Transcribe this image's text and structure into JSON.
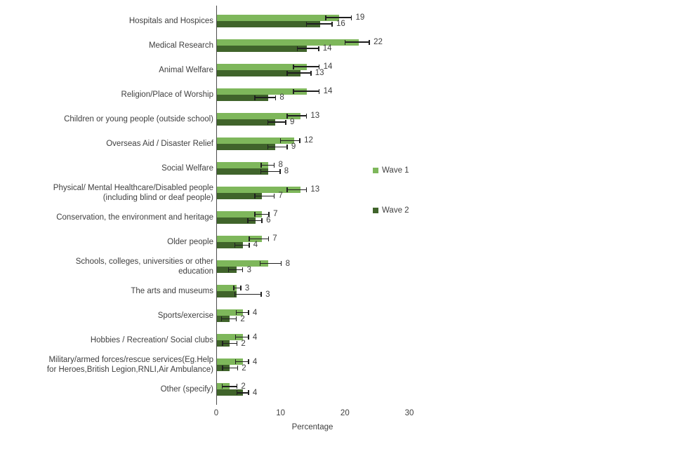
{
  "chart_data": {
    "type": "bar",
    "orientation": "horizontal",
    "grouped": true,
    "title": "",
    "xlabel": "Percentage",
    "xlim": [
      0,
      33
    ],
    "xticks": [
      0,
      10,
      20,
      30
    ],
    "grid": false,
    "legend_position": "right",
    "categories": [
      "Hospitals and Hospices",
      "Medical Research",
      "Animal Welfare",
      "Religion/Place of Worship",
      "Children or young people (outside school)",
      "Overseas Aid / Disaster Relief",
      "Social Welfare",
      "Physical/ Mental Healthcare/Disabled people\n(including blind or deaf people)",
      "Conservation, the environment and heritage",
      "Older people",
      "Schools, colleges, universities or other\neducation",
      "The arts and museums",
      "Sports/exercise",
      "Hobbies / Recreation/ Social clubs",
      "Military/armed forces/rescue services(Eg.Help\nfor Heroes,British Legion,RNLI,Air Ambulance)",
      "Other (specify)"
    ],
    "series": [
      {
        "name": "Wave 1",
        "color": "#7EB75B",
        "values": [
          19,
          22,
          14,
          14,
          13,
          12,
          8,
          13,
          7,
          7,
          8,
          3,
          4,
          4,
          4,
          2
        ],
        "error_bars": [
          [
            17,
            21
          ],
          [
            20,
            23.8
          ],
          [
            12,
            16
          ],
          [
            12,
            16
          ],
          [
            11,
            14
          ],
          [
            10,
            13
          ],
          [
            7,
            9
          ],
          [
            11,
            14
          ],
          [
            6,
            8.2
          ],
          [
            5.1,
            8.1
          ],
          [
            6.8,
            10.1
          ],
          [
            2.7,
            3.8
          ],
          [
            3.1,
            5
          ],
          [
            3,
            5
          ],
          [
            3,
            5
          ],
          [
            0.9,
            3.2
          ]
        ]
      },
      {
        "name": "Wave 2",
        "color": "#40642B",
        "values": [
          16,
          14,
          13,
          8,
          9,
          9,
          8,
          7,
          6,
          4,
          3,
          3,
          2,
          2,
          2,
          4
        ],
        "error_bars": [
          [
            14,
            18
          ],
          [
            12.6,
            15.9
          ],
          [
            11,
            14.7
          ],
          [
            6,
            9.2
          ],
          [
            8,
            10.8
          ],
          [
            8,
            11
          ],
          [
            6.9,
            9.9
          ],
          [
            6,
            9
          ],
          [
            4.9,
            7.1
          ],
          [
            2.9,
            5.1
          ],
          [
            1.9,
            4.1
          ],
          [
            2.9,
            7
          ],
          [
            0.8,
            3.1
          ],
          [
            1,
            3.2
          ],
          [
            1,
            3.3
          ],
          [
            3.2,
            5
          ]
        ]
      }
    ],
    "error_bar_color": "#1F1F1F",
    "axis_color": "#4D4D4D",
    "text_color": "#3F3F3F"
  }
}
